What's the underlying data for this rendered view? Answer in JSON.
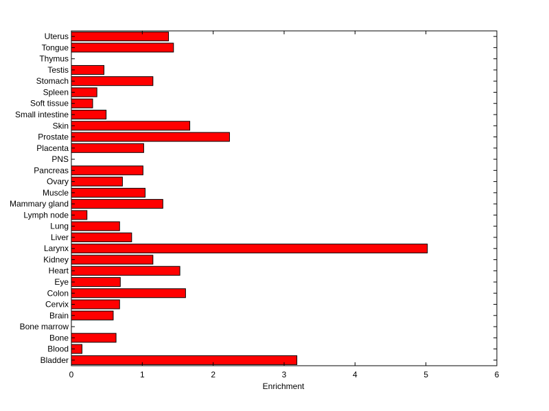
{
  "chart_data": {
    "type": "bar",
    "orientation": "horizontal",
    "title": "",
    "xlabel": "Enrichment",
    "ylabel": "",
    "xlim": [
      0,
      6
    ],
    "xticks": [
      "0",
      "1",
      "2",
      "3",
      "4",
      "5",
      "6"
    ],
    "grid": false,
    "legend": "none",
    "bar_color": "#ff0000",
    "edge_color": "#000000",
    "categories": [
      "Uterus",
      "Tongue",
      "Thymus",
      "Testis",
      "Stomach",
      "Spleen",
      "Soft tissue",
      "Small intestine",
      "Skin",
      "Prostate",
      "Placenta",
      "PNS",
      "Pancreas",
      "Ovary",
      "Muscle",
      "Mammary gland",
      "Lymph node",
      "Lung",
      "Liver",
      "Larynx",
      "Kidney",
      "Heart",
      "Eye",
      "Colon",
      "Cervix",
      "Brain",
      "Bone marrow",
      "Bone",
      "Blood",
      "Bladder"
    ],
    "values": [
      1.37,
      1.44,
      0,
      0.46,
      1.15,
      0.36,
      0.3,
      0.49,
      1.67,
      2.23,
      1.02,
      0,
      1.01,
      0.72,
      1.04,
      1.29,
      0.22,
      0.68,
      0.85,
      5.02,
      1.15,
      1.53,
      0.69,
      1.61,
      0.68,
      0.59,
      0,
      0.63,
      0.15,
      3.18
    ]
  }
}
